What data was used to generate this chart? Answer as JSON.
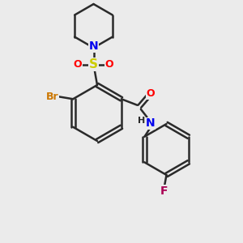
{
  "background_color": "#ebebeb",
  "bond_color": "#2a2a2a",
  "bond_lw": 1.8,
  "atom_colors": {
    "Br": "#cc7700",
    "N": "#0000ee",
    "O": "#ff0000",
    "S": "#cccc00",
    "F": "#aa0055",
    "C": "#2a2a2a",
    "H": "#2a2a2a"
  },
  "xlim": [
    0,
    10
  ],
  "ylim": [
    0,
    10
  ]
}
